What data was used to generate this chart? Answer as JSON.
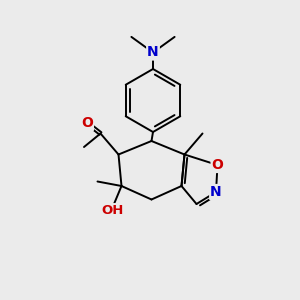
{
  "background_color": "#ebebeb",
  "bond_color": "#000000",
  "atom_colors": {
    "N": "#0000cc",
    "O": "#cc0000",
    "C": "#000000"
  },
  "figsize": [
    3.0,
    3.0
  ],
  "dpi": 100,
  "lw": 1.4
}
